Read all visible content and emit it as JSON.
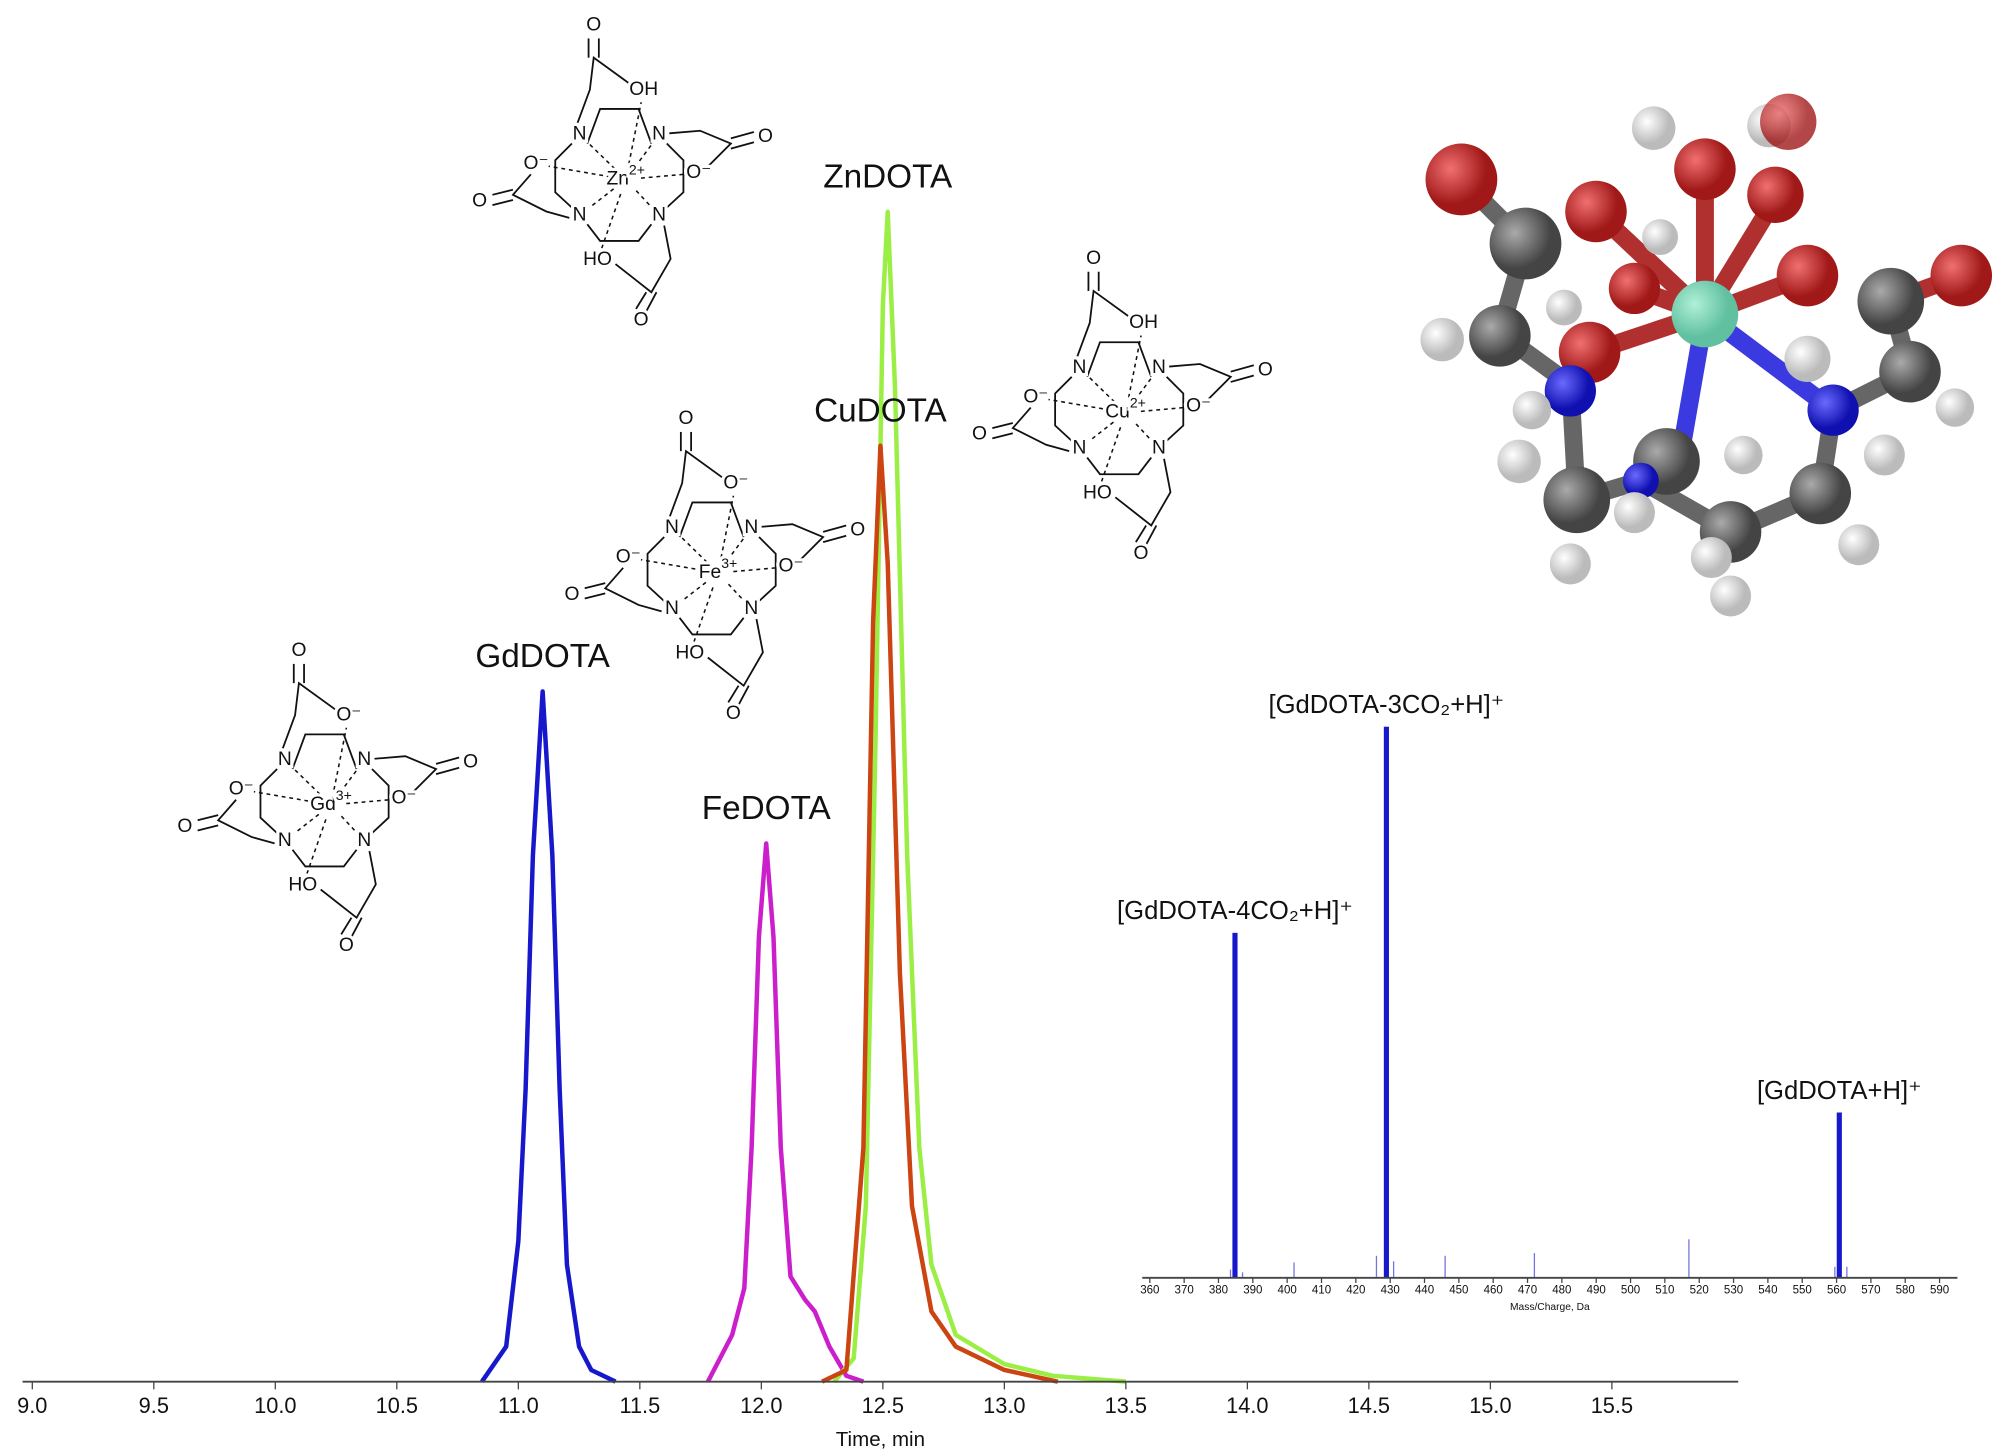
{
  "chart_data": [
    {
      "type": "line",
      "xlabel": "Time, min",
      "xlim": [
        8.96,
        16.02
      ],
      "ylim": [
        0,
        110
      ],
      "xticks": [
        {
          "value": 9,
          "label": "9.0"
        },
        9.5,
        {
          "value": 10,
          "label": "10.0"
        },
        10.5,
        {
          "value": 11,
          "label": "11.0"
        },
        11.5,
        {
          "value": 12,
          "label": "12.0"
        },
        12.5,
        {
          "value": 13,
          "label": "13.0"
        },
        13.5,
        {
          "value": 14,
          "label": "14.0"
        },
        14.5,
        {
          "value": 15,
          "label": "15.0"
        },
        15.5
      ],
      "series": [
        {
          "name": "GdDOTA",
          "color": "#1717cc",
          "x": [
            10.85,
            10.95,
            11.0,
            11.03,
            11.06,
            11.1,
            11.14,
            11.17,
            11.2,
            11.25,
            11.3,
            11.4
          ],
          "values": [
            0,
            3,
            12,
            25,
            45,
            59,
            45,
            25,
            10,
            3,
            1,
            0
          ]
        },
        {
          "name": "FeDOTA",
          "color": "#cc1fcc",
          "x": [
            11.78,
            11.88,
            11.93,
            11.96,
            11.99,
            12.02,
            12.05,
            12.08,
            12.12,
            12.18,
            12.22,
            12.28,
            12.35,
            12.42
          ],
          "values": [
            0,
            4,
            8,
            20,
            38,
            46,
            38,
            20,
            9,
            7,
            6,
            3,
            0.5,
            0
          ]
        },
        {
          "name": "ZnDOTA",
          "color": "#9aee44",
          "x": [
            12.3,
            12.38,
            12.43,
            12.47,
            12.5,
            12.52,
            12.55,
            12.6,
            12.65,
            12.7,
            12.8,
            13.0,
            13.2,
            13.5
          ],
          "values": [
            0,
            2,
            15,
            55,
            92,
            100,
            85,
            45,
            20,
            10,
            4,
            1.5,
            0.5,
            0
          ]
        },
        {
          "name": "CuDOTA",
          "color": "#cc4411",
          "x": [
            12.25,
            12.35,
            12.42,
            12.46,
            12.49,
            12.52,
            12.57,
            12.62,
            12.7,
            12.8,
            13.0,
            13.22
          ],
          "values": [
            0,
            1,
            20,
            65,
            80,
            70,
            35,
            15,
            6,
            3,
            1,
            0
          ]
        }
      ]
    },
    {
      "type": "bar",
      "xlabel": "Mass/Charge, Da",
      "xlim": [
        357.8,
        595.2
      ],
      "ylim": [
        0,
        100
      ],
      "color": "#1717cc",
      "xticks": [
        360,
        370,
        380,
        390,
        400,
        410,
        420,
        430,
        440,
        450,
        460,
        470,
        480,
        490,
        500,
        510,
        520,
        530,
        540,
        550,
        560,
        570,
        580,
        590
      ],
      "x": [
        383.5,
        384.8,
        387,
        402,
        426,
        428.9,
        431,
        446,
        472,
        517,
        559.5,
        560.8,
        563
      ],
      "values": [
        1.5,
        62.6,
        1,
        2.8,
        4,
        100,
        3,
        4,
        4.5,
        7,
        2,
        30,
        2
      ],
      "peak_labels": [
        null,
        "[GdDOTA-4CO₂+H]⁺",
        null,
        null,
        null,
        "[GdDOTA-3CO₂+H]⁺",
        null,
        null,
        null,
        null,
        null,
        "[GdDOTA+H]⁺",
        null
      ]
    }
  ],
  "structures": [
    {
      "metal": "Zn",
      "charge": "2+",
      "atoms": [
        "O",
        "OH",
        "N",
        "N",
        "N",
        "N",
        "O⁻",
        "O",
        "O⁻",
        "O",
        "HO",
        "O"
      ]
    },
    {
      "metal": "Cu",
      "charge": "2+",
      "atoms": [
        "O",
        "OH",
        "N",
        "N",
        "N",
        "N",
        "O⁻",
        "O",
        "O⁻",
        "O",
        "HO",
        "O"
      ]
    },
    {
      "metal": "Fe",
      "charge": "3+",
      "atoms": [
        "O",
        "O⁻",
        "N",
        "N",
        "N",
        "N",
        "O⁻",
        "O",
        "O⁻",
        "O",
        "HO",
        "O"
      ]
    },
    {
      "metal": "Gd",
      "charge": "3+",
      "atoms": [
        "O",
        "O⁻",
        "N",
        "N",
        "N",
        "N",
        "O⁻",
        "O",
        "O⁻",
        "O",
        "HO",
        "O"
      ]
    }
  ]
}
